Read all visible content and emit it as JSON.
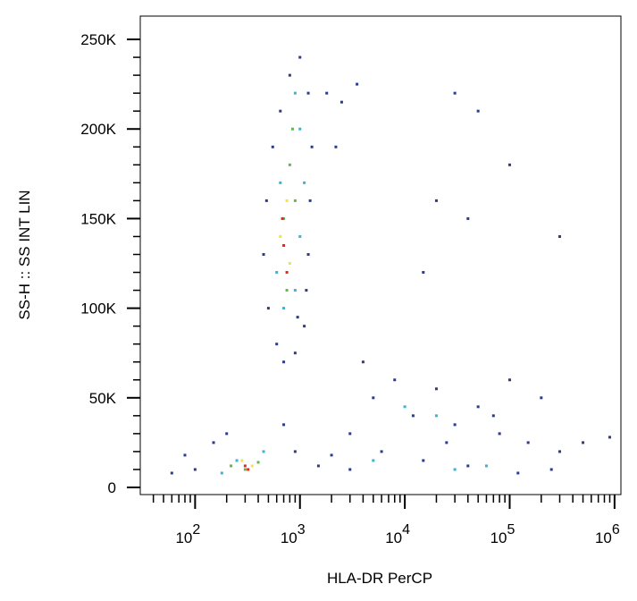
{
  "chart_data": {
    "type": "scatter",
    "xlabel": "HLA-DR PerCP",
    "ylabel": "SS-H :: SS INT LIN",
    "xscale": "log",
    "xlim": [
      30,
      1150000
    ],
    "ylim": [
      -4000,
      263000
    ],
    "xticks": [
      {
        "value": 100,
        "label": "10",
        "power": "2"
      },
      {
        "value": 1000,
        "label": "10",
        "power": "3"
      },
      {
        "value": 10000,
        "label": "10",
        "power": "4"
      },
      {
        "value": 100000,
        "label": "10",
        "power": "5"
      },
      {
        "value": 1000000,
        "label": "10",
        "power": "6"
      }
    ],
    "xminorticks": [
      40,
      50,
      60,
      70,
      80,
      90,
      200,
      300,
      400,
      500,
      600,
      700,
      800,
      900,
      2000,
      3000,
      4000,
      5000,
      6000,
      7000,
      8000,
      9000,
      20000,
      30000,
      40000,
      50000,
      60000,
      70000,
      80000,
      90000,
      200000,
      300000,
      400000,
      500000,
      600000,
      700000,
      800000,
      900000
    ],
    "yticks": [
      0,
      {
        "value": 50000,
        "label": "50K"
      },
      {
        "value": 100000,
        "label": "100K"
      },
      {
        "value": 150000,
        "label": "150K"
      },
      {
        "value": 200000,
        "label": "200K"
      },
      {
        "value": 250000,
        "label": "250K"
      }
    ],
    "yminorticks": [
      10000,
      20000,
      30000,
      40000,
      60000,
      70000,
      80000,
      90000,
      110000,
      120000,
      130000,
      140000,
      160000,
      170000,
      180000,
      190000,
      210000,
      220000,
      230000,
      240000
    ],
    "series": [
      {
        "color": "#2b3a93",
        "x": [
          600,
          700,
          900,
          1100,
          500,
          450,
          480,
          550,
          650,
          800,
          1000,
          1200,
          1300,
          1250,
          1200,
          1150,
          950,
          1800,
          2500,
          3500,
          2200,
          5000,
          8000,
          12000,
          20000,
          30000,
          50000,
          80000,
          150000,
          300000,
          200000,
          100000,
          4000,
          3000,
          6000,
          15000,
          40000,
          250000,
          500000,
          900000,
          3000,
          2000,
          1500,
          100,
          80,
          60,
          150,
          200,
          700,
          900,
          30000,
          50000,
          20000,
          40000,
          15000,
          100000,
          300000,
          70000,
          25000,
          120000
        ],
        "values": [
          80000,
          70000,
          75000,
          90000,
          100000,
          130000,
          160000,
          190000,
          210000,
          230000,
          240000,
          220000,
          190000,
          160000,
          130000,
          110000,
          95000,
          220000,
          215000,
          225000,
          190000,
          50000,
          60000,
          40000,
          55000,
          35000,
          45000,
          30000,
          25000,
          20000,
          50000,
          60000,
          70000,
          30000,
          20000,
          15000,
          12000,
          10000,
          25000,
          28000,
          10000,
          18000,
          12000,
          10000,
          18000,
          8000,
          25000,
          30000,
          35000,
          20000,
          220000,
          210000,
          160000,
          150000,
          120000,
          180000,
          140000,
          40000,
          25000,
          8000
        ]
      },
      {
        "color": "#35b6d6",
        "x": [
          700,
          900,
          600,
          1000,
          1000,
          900,
          650,
          250,
          450,
          180,
          30000,
          60000,
          10000,
          20000,
          5000,
          1100
        ],
        "values": [
          100000,
          110000,
          120000,
          140000,
          200000,
          220000,
          170000,
          15000,
          20000,
          8000,
          10000,
          12000,
          45000,
          40000,
          15000,
          170000
        ]
      },
      {
        "color": "#5dbb46",
        "x": [
          800,
          700,
          900,
          750,
          300,
          400,
          220,
          850
        ],
        "values": [
          180000,
          150000,
          160000,
          110000,
          10000,
          14000,
          12000,
          200000
        ]
      },
      {
        "color": "#f2e63a",
        "x": [
          750,
          650,
          800,
          350,
          280
        ],
        "values": [
          160000,
          140000,
          125000,
          12000,
          15000
        ]
      },
      {
        "color": "#e6261f",
        "x": [
          700,
          750,
          680,
          300,
          320
        ],
        "values": [
          135000,
          120000,
          150000,
          12000,
          10000
        ]
      }
    ]
  }
}
